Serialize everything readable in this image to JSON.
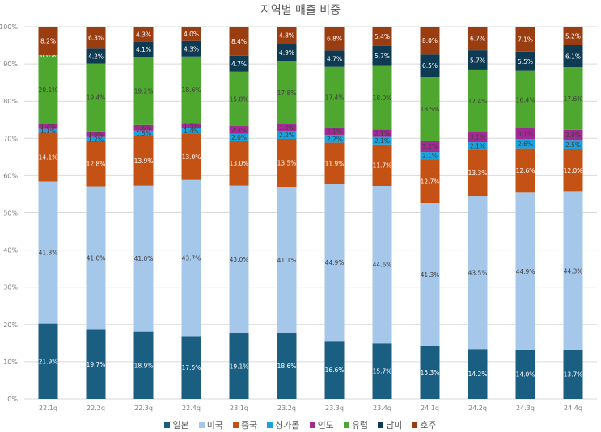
{
  "chart_data": {
    "type": "bar",
    "stacked": "percent",
    "title": "지역별 매출 비중",
    "xlabel": "",
    "ylabel": "",
    "ylim": [
      0,
      100
    ],
    "yticks": [
      "0%",
      "10%",
      "20%",
      "30%",
      "40%",
      "50%",
      "60%",
      "70%",
      "80%",
      "90%",
      "100%"
    ],
    "grid": true,
    "legend_position": "bottom",
    "categories": [
      "22.1q",
      "22.2q",
      "22.3q",
      "22.4q",
      "23.1q",
      "23.2q",
      "23.3q",
      "23.4q",
      "24.1q",
      "24.2q",
      "24.3q",
      "24.4q"
    ],
    "series": [
      {
        "name": "일본",
        "color": "#1a5e82",
        "label_color": "#ffffff",
        "values": [
          21.9,
          19.7,
          18.9,
          17.5,
          19.1,
          18.6,
          16.6,
          15.7,
          15.3,
          14.2,
          14.0,
          13.7
        ]
      },
      {
        "name": "미국",
        "color": "#a5c8ea",
        "label_color": "#404040",
        "values": [
          41.3,
          41.0,
          41.0,
          43.7,
          43.0,
          41.1,
          44.9,
          44.6,
          41.3,
          43.5,
          44.9,
          44.3
        ]
      },
      {
        "name": "중국",
        "color": "#c55215",
        "label_color": "#ffffff",
        "values": [
          14.1,
          12.8,
          13.9,
          13.0,
          13.0,
          13.5,
          11.9,
          11.7,
          12.7,
          13.3,
          12.6,
          12.0
        ]
      },
      {
        "name": "싱가폴",
        "color": "#1aa2dc",
        "label_color": "#404040",
        "values": [
          1.1,
          1.2,
          1.5,
          1.4,
          2.0,
          2.2,
          2.2,
          2.1,
          2.1,
          2.1,
          2.6,
          2.5
        ]
      },
      {
        "name": "인도",
        "color": "#a02b93",
        "label_color": "#404040",
        "values": [
          1.4,
          1.6,
          1.6,
          1.5,
          2.3,
          1.9,
          2.1,
          2.1,
          3.2,
          3.1,
          3.1,
          2.8
        ]
      },
      {
        "name": "유럽",
        "color": "#4ea72e",
        "label_color": "#404040",
        "values": [
          20.1,
          19.4,
          19.2,
          18.6,
          15.8,
          17.8,
          17.4,
          18.0,
          18.5,
          17.4,
          16.4,
          17.6
        ]
      },
      {
        "name": "남미",
        "color": "#0e3a52",
        "label_color": "#ffffff",
        "values": [
          0.0,
          4.2,
          4.1,
          4.3,
          4.7,
          4.9,
          4.7,
          5.7,
          6.5,
          5.7,
          5.5,
          6.1
        ]
      },
      {
        "name": "호주",
        "color": "#9a3e12",
        "label_color": "#ffffff",
        "values": [
          8.2,
          6.3,
          4.3,
          4.0,
          8.4,
          4.8,
          6.8,
          5.4,
          8.0,
          6.7,
          7.1,
          5.2
        ]
      }
    ]
  }
}
